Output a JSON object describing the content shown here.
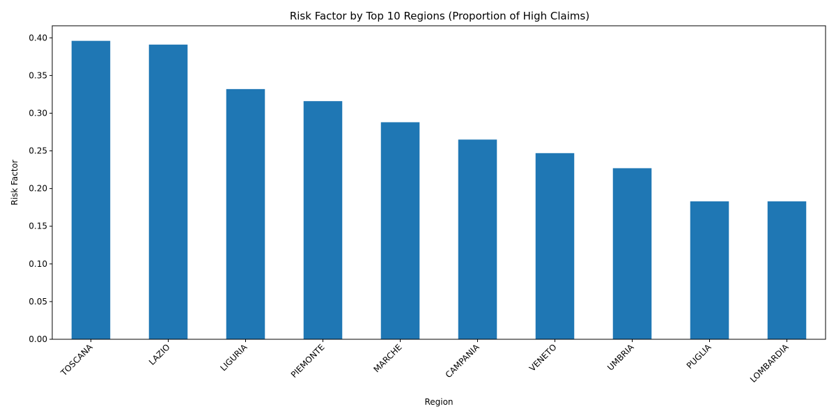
{
  "chart_data": {
    "type": "bar",
    "title": "Risk Factor by Top 10 Regions (Proportion of High Claims)",
    "xlabel": "Region",
    "ylabel": "Risk Factor",
    "categories": [
      "TOSCANA",
      "LAZIO",
      "LIGURIA",
      "PIEMONTE",
      "MARCHE",
      "CAMPANIA",
      "VENETO",
      "UMBRIA",
      "PUGLIA",
      "LOMBARDIA"
    ],
    "values": [
      0.396,
      0.391,
      0.332,
      0.316,
      0.288,
      0.265,
      0.247,
      0.227,
      0.183,
      0.183
    ],
    "ylim": [
      0,
      0.416
    ],
    "yticks": [
      0.0,
      0.05,
      0.1,
      0.15,
      0.2,
      0.25,
      0.3,
      0.35,
      0.4
    ],
    "ytick_labels": [
      "0.00",
      "0.05",
      "0.10",
      "0.15",
      "0.20",
      "0.25",
      "0.30",
      "0.35",
      "0.40"
    ],
    "bar_color": "#1f77b4",
    "grid": false,
    "legend": "none"
  }
}
